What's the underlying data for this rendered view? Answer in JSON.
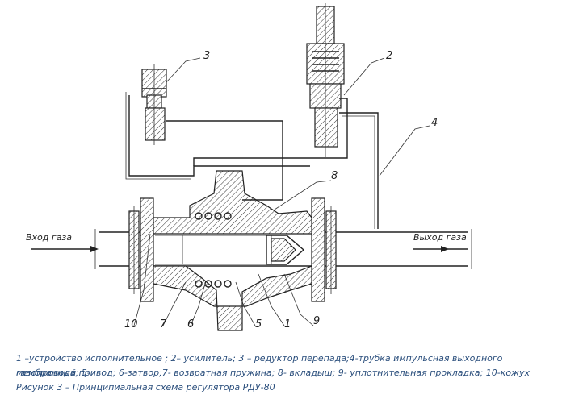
{
  "figure": {
    "flow_in_label": "Вход газа",
    "flow_out_label": "Выход газа",
    "callouts": [
      "1",
      "2",
      "3",
      "4",
      "5",
      "6",
      "7",
      "8",
      "9",
      "10"
    ]
  },
  "caption": {
    "legend_line1": "1 –устройство исполнительное ; 2– усилитель; 3 – редуктор перепада;4-трубка импульсная выходного газопровода; 5-",
    "legend_line2": "мембранный привод; 6-затвор;7- возвратная пружина; 8- вкладыш; 9- уплотнительная прокладка; 10-кожух",
    "title": "Рисунок 3 – Принципиальная схема регулятора РДУ-80"
  }
}
